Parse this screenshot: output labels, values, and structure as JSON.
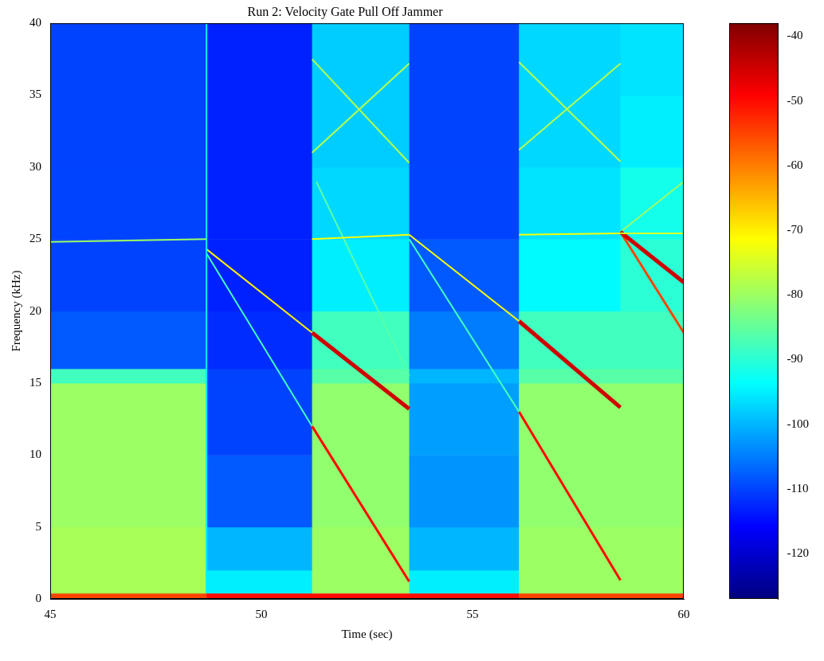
{
  "chart_data": {
    "type": "heatmap",
    "title": "Run 2: Velocity Gate Pull Off Jammer",
    "x_label": "Time (sec)",
    "y_label": "Frequency (kHz)",
    "xlim": [
      45,
      60
    ],
    "xticks": [
      45,
      50,
      55,
      60
    ],
    "ylim": [
      0,
      40
    ],
    "yticks": [
      0,
      5,
      10,
      15,
      20,
      25,
      30,
      35,
      40
    ],
    "grid": false,
    "cells": {
      "x_edges": [
        45,
        48.7,
        51.2,
        53.5,
        56.1,
        58.5,
        60
      ],
      "y_edges": [
        0,
        0.4,
        2,
        5,
        10,
        15,
        16,
        20,
        25,
        30,
        35,
        40
      ],
      "values": [
        [
          -55,
          -50,
          -50,
          -50,
          -55,
          -55
        ],
        [
          -79,
          -95,
          -80,
          -95,
          -80,
          -80
        ],
        [
          -79,
          -100,
          -80,
          -100,
          -80,
          -80
        ],
        [
          -80,
          -108,
          -81,
          -103,
          -81,
          -81
        ],
        [
          -80,
          -110,
          -81,
          -102,
          -81,
          -81
        ],
        [
          -88,
          -110,
          -86,
          -100,
          -86,
          -86
        ],
        [
          -108,
          -112,
          -88,
          -105,
          -88,
          -88
        ],
        [
          -110,
          -113,
          -95,
          -108,
          -94,
          -90
        ],
        [
          -110,
          -113,
          -97,
          -110,
          -96,
          -92
        ],
        [
          -110,
          -113,
          -98,
          -110,
          -97,
          -95
        ],
        [
          -110,
          -113,
          -98,
          -110,
          -97,
          -96
        ]
      ]
    },
    "tracks": [
      {
        "x": [
          45,
          48.7
        ],
        "values": [
          24.8,
          25.0
        ],
        "level": -80
      },
      {
        "x": [
          48.7,
          48.7
        ],
        "values": [
          0.4,
          40
        ],
        "level": -95
      },
      {
        "x": [
          48.7,
          51.2
        ],
        "values": [
          24.3,
          18.5
        ],
        "level": -70
      },
      {
        "x": [
          51.2,
          53.5
        ],
        "values": [
          18.5,
          13.2
        ],
        "level": -45
      },
      {
        "x": [
          48.7,
          51.2
        ],
        "values": [
          24.0,
          12.0
        ],
        "level": -88
      },
      {
        "x": [
          51.2,
          53.5
        ],
        "values": [
          12.0,
          1.2
        ],
        "level": -50
      },
      {
        "x": [
          51.2,
          53.5
        ],
        "values": [
          25.0,
          25.3
        ],
        "level": -72
      },
      {
        "x": [
          51.2,
          53.5
        ],
        "values": [
          31.0,
          37.2
        ],
        "level": -78
      },
      {
        "x": [
          51.2,
          53.5
        ],
        "values": [
          37.5,
          30.3
        ],
        "level": -78
      },
      {
        "x": [
          51.3,
          53.5
        ],
        "values": [
          29.0,
          15.5
        ],
        "level": -86
      },
      {
        "x": [
          53.5,
          56.1
        ],
        "values": [
          25.3,
          19.3
        ],
        "level": -72
      },
      {
        "x": [
          56.1,
          58.5
        ],
        "values": [
          19.3,
          13.3
        ],
        "level": -45
      },
      {
        "x": [
          53.5,
          56.1
        ],
        "values": [
          25.0,
          13.0
        ],
        "level": -88
      },
      {
        "x": [
          56.1,
          58.5
        ],
        "values": [
          13.0,
          1.3
        ],
        "level": -50
      },
      {
        "x": [
          56.1,
          58.5
        ],
        "values": [
          25.3,
          25.4
        ],
        "level": -72
      },
      {
        "x": [
          56.1,
          58.5
        ],
        "values": [
          31.2,
          37.2
        ],
        "level": -78
      },
      {
        "x": [
          56.1,
          58.5
        ],
        "values": [
          37.3,
          30.4
        ],
        "level": -78
      },
      {
        "x": [
          58.5,
          60
        ],
        "values": [
          25.4,
          25.4
        ],
        "level": -75
      },
      {
        "x": [
          58.5,
          60
        ],
        "values": [
          25.5,
          22.0
        ],
        "level": -45
      },
      {
        "x": [
          58.5,
          60
        ],
        "values": [
          25.5,
          18.5
        ],
        "level": -55
      },
      {
        "x": [
          58.5,
          60
        ],
        "values": [
          25.5,
          29.0
        ],
        "level": -80
      }
    ],
    "colorbar": {
      "range": [
        -127,
        -38
      ],
      "ticks": [
        -120,
        -110,
        -100,
        -90,
        -80,
        -70,
        -60,
        -50,
        -40
      ]
    }
  }
}
